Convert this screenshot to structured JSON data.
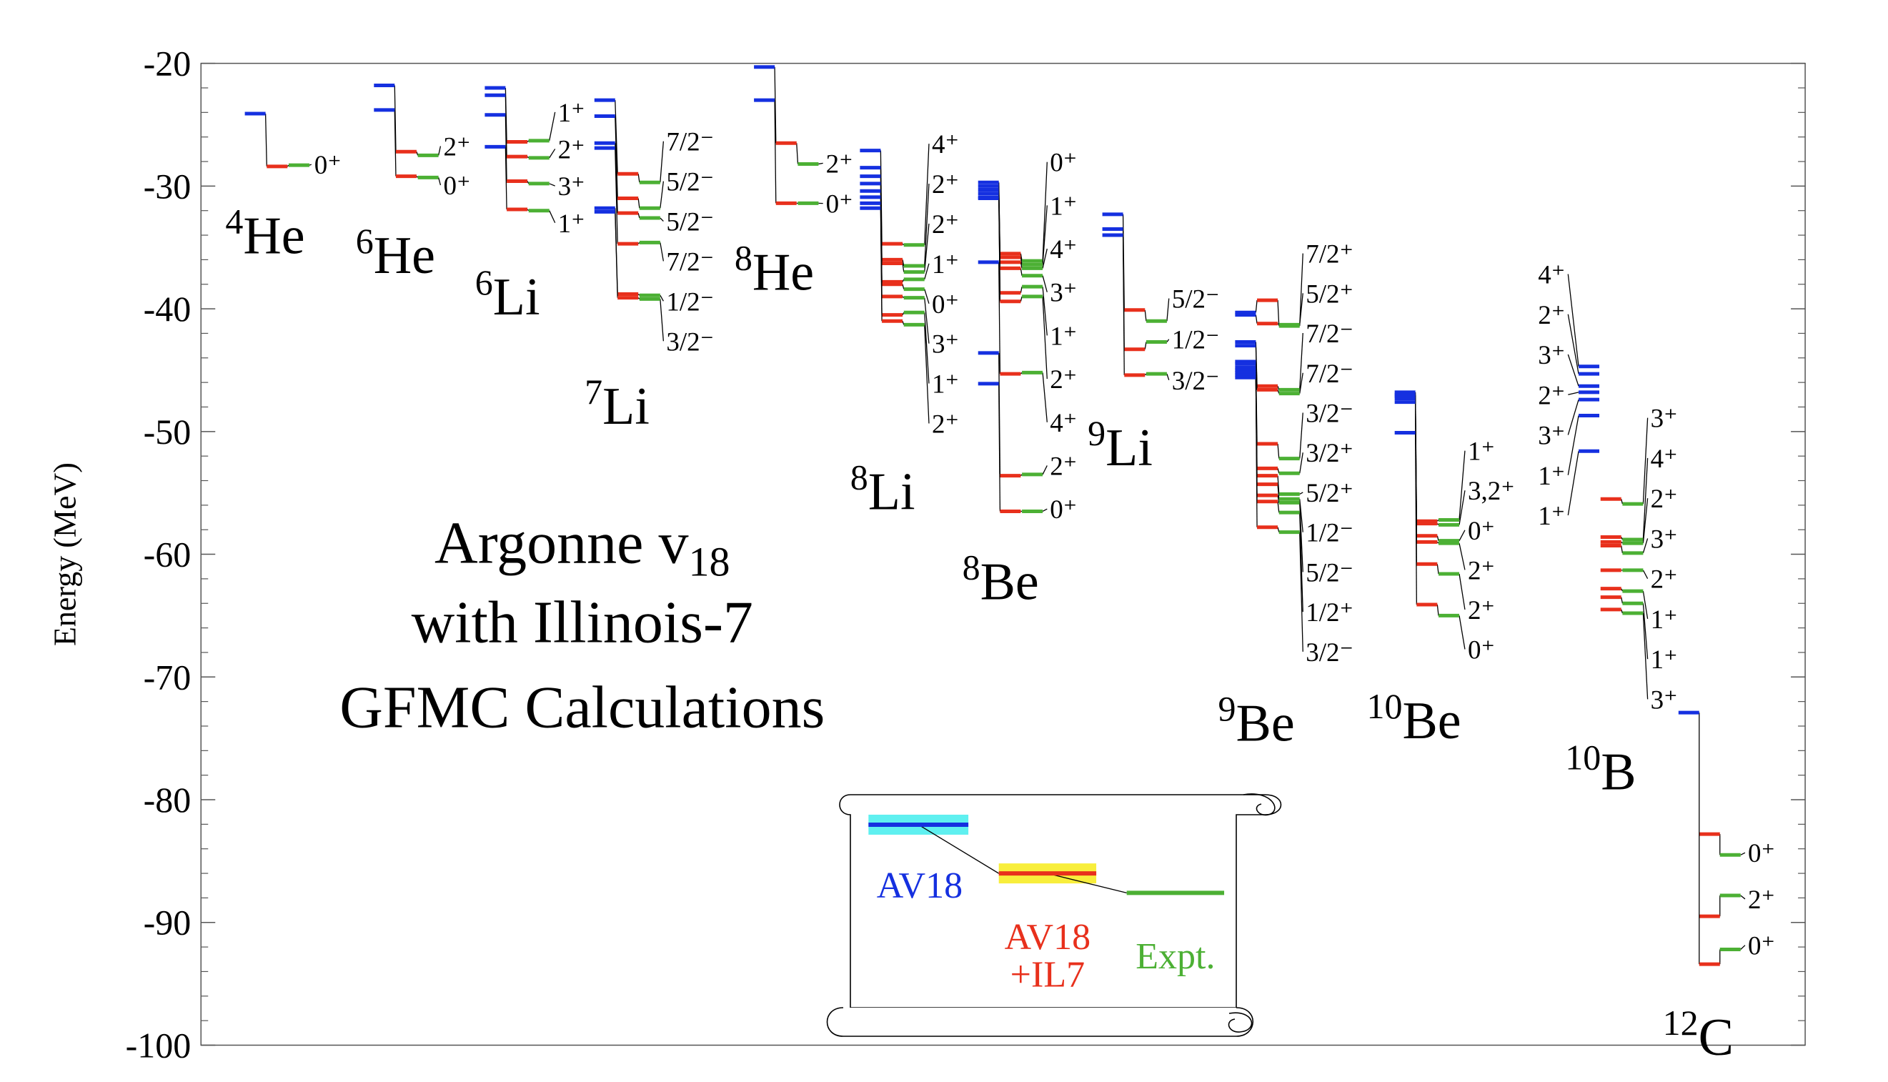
{
  "chart_data": {
    "type": "levels",
    "y_label": "Energy (MeV)",
    "title": {
      "main": "Argonne v",
      "subscript": "18",
      "line2": "with Illinois-7",
      "line3": "GFMC Calculations"
    },
    "ylim": [
      -100,
      -20
    ],
    "yticks": [
      -100,
      -90,
      -80,
      -70,
      -60,
      -50,
      -40,
      -30,
      -20
    ],
    "yminorticks": [
      -98,
      -96,
      -94,
      -92,
      -88,
      -86,
      -84,
      -82,
      -78,
      -76,
      -74,
      -72,
      -68,
      -66,
      -64,
      -62,
      -58,
      -56,
      -54,
      -52,
      -48,
      -46,
      -44,
      -42,
      -38,
      -36,
      -34,
      -32,
      -28,
      -26,
      -24,
      -22
    ],
    "series": [
      {
        "key": "av18",
        "name": [
          "AV18"
        ],
        "color": "#1530e0"
      },
      {
        "key": "il7",
        "name": [
          "AV18",
          "+IL7"
        ],
        "color": "#e8301c"
      },
      {
        "key": "expt",
        "name": [
          "Expt."
        ],
        "color": "#4cb034"
      }
    ],
    "nuclei": [
      {
        "mass": "4",
        "symbol": "He",
        "levels": [
          {
            "label": "0⁺",
            "av18": -24.1,
            "il7": -28.4,
            "expt": -28.3
          }
        ]
      },
      {
        "mass": "6",
        "symbol": "He",
        "levels": [
          {
            "label": "2⁺",
            "av18": -21.8,
            "il7": -27.2,
            "expt": -27.5
          },
          {
            "label": "0⁺",
            "av18": -23.8,
            "il7": -29.2,
            "expt": -29.3
          }
        ]
      },
      {
        "mass": "6",
        "symbol": "Li",
        "levels": [
          {
            "label": "1⁺",
            "av18": -22.0,
            "il7": -26.4,
            "expt": -26.3
          },
          {
            "label": "2⁺",
            "av18": -22.6,
            "il7": -27.6,
            "expt": -27.7
          },
          {
            "label": "3⁺",
            "av18": -24.2,
            "il7": -29.6,
            "expt": -29.8
          },
          {
            "label": "1⁺",
            "av18": -26.8,
            "il7": -31.9,
            "expt": -32.0
          }
        ]
      },
      {
        "mass": "7",
        "symbol": "Li",
        "levels": [
          {
            "label": "7/2⁻",
            "av18": -23.0,
            "il7": -29.0,
            "expt": -29.7
          },
          {
            "label": "5/2⁻",
            "av18": -24.3,
            "il7": -31.0,
            "expt": -31.8
          },
          {
            "label": "5/2⁻",
            "av18": -26.5,
            "il7": -32.2,
            "expt": -32.6
          },
          {
            "label": "7/2⁻",
            "av18": -26.9,
            "il7": -34.7,
            "expt": -34.6
          },
          {
            "label": "1/2⁻",
            "av18": -31.8,
            "il7": -38.8,
            "expt": -38.9
          },
          {
            "label": "3/2⁻",
            "av18": -32.1,
            "il7": -39.1,
            "expt": -39.2
          }
        ]
      },
      {
        "mass": "8",
        "symbol": "He",
        "levels": [
          {
            "label": "2⁺",
            "av18": -20.3,
            "il7": -26.5,
            "expt": -28.2
          },
          {
            "label": "0⁺",
            "av18": -23.0,
            "il7": -31.4,
            "expt": -31.4
          }
        ]
      },
      {
        "mass": "8",
        "symbol": "Li",
        "levels": [
          {
            "label": "4⁺",
            "av18": -27.1,
            "il7": -34.7,
            "expt": -34.8
          },
          {
            "label": "2⁺",
            "av18": -28.5,
            "il7": -36.0,
            "expt": -36.5
          },
          {
            "label": "2⁺",
            "av18": -29.2,
            "il7": -36.3,
            "expt": -37.0
          },
          {
            "label": "1⁺",
            "av18": -29.8,
            "il7": -37.8,
            "expt": -37.6
          },
          {
            "label": "0⁺",
            "av18": -30.4,
            "il7": -38.0,
            "expt": -38.4
          },
          {
            "label": "3⁺",
            "av18": -30.9,
            "il7": -39.0,
            "expt": -39.1
          },
          {
            "label": "1⁺",
            "av18": -31.4,
            "il7": -40.5,
            "expt": -40.3
          },
          {
            "label": "2⁺",
            "av18": -31.8,
            "il7": -41.0,
            "expt": -41.3
          }
        ]
      },
      {
        "mass": "8",
        "symbol": "Be",
        "levels": [
          {
            "label": "0⁺",
            "av18": -29.7,
            "il7": -35.5,
            "expt": -36.1
          },
          {
            "label": "1⁺",
            "av18": -30.0,
            "il7": -35.8,
            "expt": -36.4
          },
          {
            "label": "4⁺",
            "av18": -30.3,
            "il7": -36.2,
            "expt": -36.7
          },
          {
            "label": "3⁺",
            "av18": -30.6,
            "il7": -36.7,
            "expt": -37.3
          },
          {
            "label": "1⁺",
            "av18": -30.9,
            "il7": -38.7,
            "expt": -38.2
          },
          {
            "label": "2⁺",
            "av18": -31.0,
            "il7": -39.4,
            "expt": -39.0
          },
          {
            "label": "4⁺",
            "av18": -36.2,
            "il7": -45.3,
            "expt": -45.2
          },
          {
            "label": "2⁺",
            "av18": -43.6,
            "il7": -53.6,
            "expt": -53.5
          },
          {
            "label": "0⁺",
            "av18": -46.1,
            "il7": -56.5,
            "expt": -56.5
          }
        ]
      },
      {
        "mass": "9",
        "symbol": "Li",
        "levels": [
          {
            "label": "5/2⁻",
            "av18": -32.3,
            "il7": -40.1,
            "expt": -41.0
          },
          {
            "label": "1/2⁻",
            "av18": -33.5,
            "il7": -43.3,
            "expt": -42.7
          },
          {
            "label": "3/2⁻",
            "av18": -34.0,
            "il7": -45.4,
            "expt": -45.3
          }
        ]
      },
      {
        "mass": "9",
        "symbol": "Be",
        "levels": [
          {
            "label": "7/2⁺",
            "av18": -40.3,
            "il7": -39.3,
            "expt": -41.4
          },
          {
            "label": "5/2⁺",
            "av18": -40.5,
            "il7": -41.2,
            "expt": -41.3
          },
          {
            "label": "7/2⁻",
            "av18": -42.7,
            "il7": -46.3,
            "expt": -46.6
          },
          {
            "label": "7/2⁻",
            "av18": -43.0,
            "il7": -46.6,
            "expt": -46.9
          },
          {
            "label": "3/2⁻",
            "av18": -44.3,
            "il7": -51.0,
            "expt": -52.2
          },
          {
            "label": "3/2⁺",
            "av18": -44.5,
            "il7": -53.0,
            "expt": -53.4
          },
          {
            "label": "5/2⁺",
            "av18": -44.8,
            "il7": -53.6,
            "expt": -55.1
          },
          {
            "label": "1/2⁻",
            "av18": -45.0,
            "il7": -54.3,
            "expt": -55.5
          },
          {
            "label": "5/2⁻",
            "av18": -45.2,
            "il7": -55.2,
            "expt": -55.8
          },
          {
            "label": "1/2⁺",
            "av18": -45.4,
            "il7": -55.7,
            "expt": -56.6
          },
          {
            "label": "3/2⁻",
            "av18": -45.6,
            "il7": -57.8,
            "expt": -58.2
          }
        ]
      },
      {
        "mass": "10",
        "symbol": "Be",
        "levels": [
          {
            "label": "1⁺",
            "av18": -46.8,
            "il7": -57.3,
            "expt": -57.2
          },
          {
            "label": "3,2⁺",
            "av18": -47.0,
            "il7": -57.5,
            "expt": -57.6
          },
          {
            "label": "0⁺",
            "av18": -47.1,
            "il7": -58.5,
            "expt": -58.9
          },
          {
            "label": "2⁺",
            "av18": -47.3,
            "il7": -59.0,
            "expt": -59.1
          },
          {
            "label": "2⁺",
            "av18": -47.6,
            "il7": -60.8,
            "expt": -61.6
          },
          {
            "label": "0⁺",
            "av18": -50.1,
            "il7": -64.1,
            "expt": -65.0
          }
        ]
      },
      {
        "mass": "10",
        "symbol": "B",
        "av18_levels": [
          {
            "label": "4⁺",
            "value": -44.7
          },
          {
            "label": "2⁺",
            "value": -45.3
          },
          {
            "label": "3⁺",
            "value": -46.3
          },
          {
            "label": "2⁺",
            "value": -46.8
          },
          {
            "label": "3⁺",
            "value": -47.4
          },
          {
            "label": "1⁺",
            "value": -48.7
          },
          {
            "label": "1⁺",
            "value": -51.6
          }
        ],
        "levels": [
          {
            "label": "3⁺",
            "il7": -55.5,
            "expt": -55.9
          },
          {
            "label": "4⁺",
            "il7": -58.6,
            "expt": -58.8
          },
          {
            "label": "2⁺",
            "il7": -59.0,
            "expt": -59.1
          },
          {
            "label": "3⁺",
            "il7": -59.3,
            "expt": -59.9
          },
          {
            "label": "2⁺",
            "il7": -61.3,
            "expt": -61.3
          },
          {
            "label": "1⁺",
            "il7": -62.8,
            "expt": -63.0
          },
          {
            "label": "1⁺",
            "il7": -63.5,
            "expt": -64.0
          },
          {
            "label": "3⁺",
            "il7": -64.5,
            "expt": -64.8
          }
        ]
      },
      {
        "mass": "12",
        "symbol": "C",
        "levels": [
          {
            "label": "0⁺",
            "il7": -82.8,
            "expt": -84.5
          },
          {
            "label": "2⁺",
            "il7": -89.5,
            "expt": -87.8
          },
          {
            "label": "0⁺",
            "av18": -72.9,
            "il7": -93.4,
            "expt": -92.2
          }
        ]
      }
    ]
  }
}
